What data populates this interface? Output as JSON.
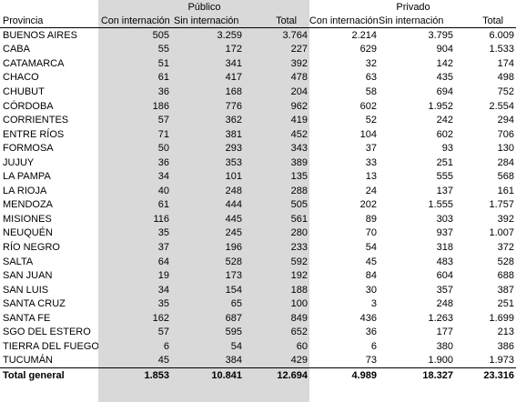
{
  "groups": {
    "publico": "Público",
    "privado": "Privado"
  },
  "columns": {
    "provincia": "Provincia",
    "pub_con": "Con internación",
    "pub_sin": "Sin internación",
    "pub_total": "Total",
    "priv_con": "Con internación",
    "priv_sin": "Sin internación",
    "priv_total": "Total"
  },
  "rows": [
    [
      "BUENOS AIRES",
      "505",
      "3.259",
      "3.764",
      "2.214",
      "3.795",
      "6.009"
    ],
    [
      "CABA",
      "55",
      "172",
      "227",
      "629",
      "904",
      "1.533"
    ],
    [
      "CATAMARCA",
      "51",
      "341",
      "392",
      "32",
      "142",
      "174"
    ],
    [
      "CHACO",
      "61",
      "417",
      "478",
      "63",
      "435",
      "498"
    ],
    [
      "CHUBUT",
      "36",
      "168",
      "204",
      "58",
      "694",
      "752"
    ],
    [
      "CÓRDOBA",
      "186",
      "776",
      "962",
      "602",
      "1.952",
      "2.554"
    ],
    [
      "CORRIENTES",
      "57",
      "362",
      "419",
      "52",
      "242",
      "294"
    ],
    [
      "ENTRE RÍOS",
      "71",
      "381",
      "452",
      "104",
      "602",
      "706"
    ],
    [
      "FORMOSA",
      "50",
      "293",
      "343",
      "37",
      "93",
      "130"
    ],
    [
      "JUJUY",
      "36",
      "353",
      "389",
      "33",
      "251",
      "284"
    ],
    [
      "LA PAMPA",
      "34",
      "101",
      "135",
      "13",
      "555",
      "568"
    ],
    [
      "LA RIOJA",
      "40",
      "248",
      "288",
      "24",
      "137",
      "161"
    ],
    [
      "MENDOZA",
      "61",
      "444",
      "505",
      "202",
      "1.555",
      "1.757"
    ],
    [
      "MISIONES",
      "116",
      "445",
      "561",
      "89",
      "303",
      "392"
    ],
    [
      "NEUQUÉN",
      "35",
      "245",
      "280",
      "70",
      "937",
      "1.007"
    ],
    [
      "RÍO NEGRO",
      "37",
      "196",
      "233",
      "54",
      "318",
      "372"
    ],
    [
      "SALTA",
      "64",
      "528",
      "592",
      "45",
      "483",
      "528"
    ],
    [
      "SAN JUAN",
      "19",
      "173",
      "192",
      "84",
      "604",
      "688"
    ],
    [
      "SAN LUIS",
      "34",
      "154",
      "188",
      "30",
      "357",
      "387"
    ],
    [
      "SANTA CRUZ",
      "35",
      "65",
      "100",
      "3",
      "248",
      "251"
    ],
    [
      "SANTA FE",
      "162",
      "687",
      "849",
      "436",
      "1.263",
      "1.699"
    ],
    [
      "SGO DEL ESTERO",
      "57",
      "595",
      "652",
      "36",
      "177",
      "213"
    ],
    [
      "TIERRA DEL FUEGO",
      "6",
      "54",
      "60",
      "6",
      "380",
      "386"
    ],
    [
      "TUCUMÁN",
      "45",
      "384",
      "429",
      "73",
      "1.900",
      "1.973"
    ]
  ],
  "total": [
    "Total general",
    "1.853",
    "10.841",
    "12.694",
    "4.989",
    "18.327",
    "23.316"
  ]
}
